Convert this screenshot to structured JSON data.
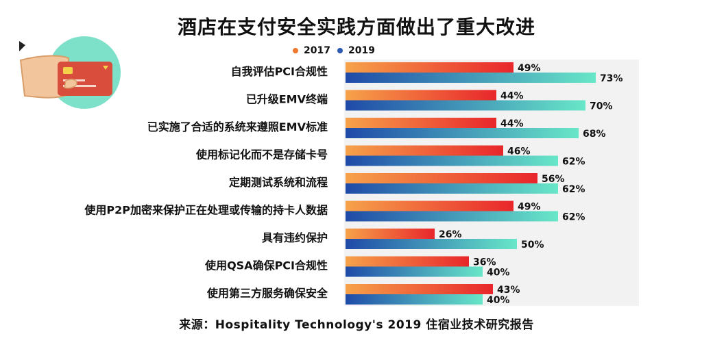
{
  "title": "酒店在支付安全实践方面做出了重大改进",
  "legend": [
    {
      "label": "2017",
      "color": "#f0772e"
    },
    {
      "label": "2019",
      "color": "#2d58b0"
    }
  ],
  "source": "来源：Hospitality Technology's 2019 住宿业技术研究报告",
  "chart_data": {
    "type": "bar",
    "orientation": "horizontal",
    "title": "酒店在支付安全实践方面做出了重大改进",
    "categories": [
      "自我评估PCI合规性",
      "已升级EMV终端",
      "已实施了合适的系统来遵照EMV标准",
      "使用标记化而不是存储卡号",
      "定期测试系统和流程",
      "使用P2P加密来保护正在处理或传输的持卡人数据",
      "具有违约保护",
      "使用QSA确保PCI合规性",
      "使用第三方服务确保安全"
    ],
    "series": [
      {
        "name": "2017",
        "values": [
          49,
          44,
          44,
          46,
          56,
          49,
          26,
          36,
          43
        ],
        "labels": [
          "49%",
          "44%",
          "44%",
          "46%",
          "56%",
          "49%",
          "26%",
          "36%",
          "43%"
        ]
      },
      {
        "name": "2019",
        "values": [
          73,
          70,
          68,
          62,
          62,
          62,
          50,
          40,
          40
        ],
        "labels": [
          "73%",
          "70%",
          "68%",
          "62%",
          "62%",
          "62%",
          "50%",
          "40%",
          "40%"
        ]
      }
    ],
    "xlim": [
      0,
      100
    ],
    "grid": false,
    "legend_position": "top"
  }
}
